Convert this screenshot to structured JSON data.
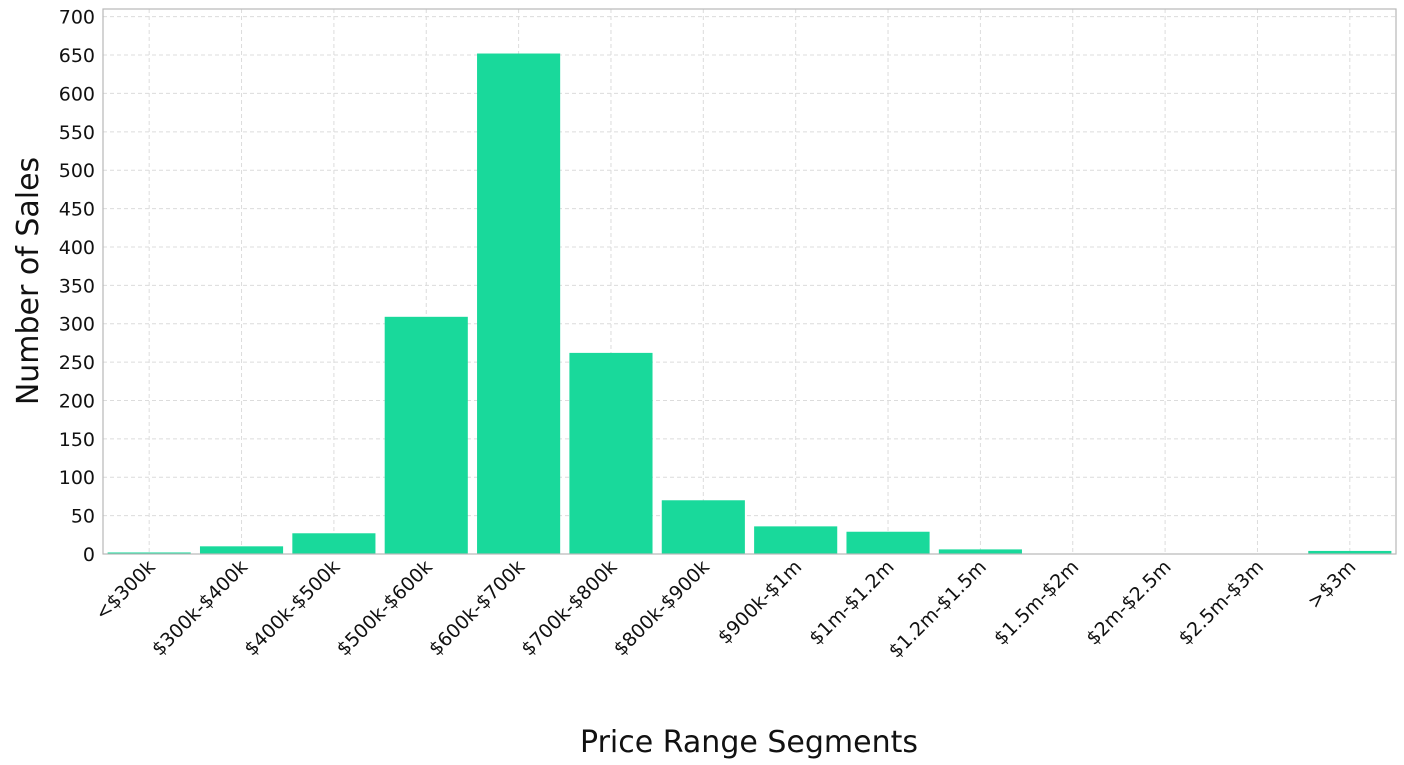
{
  "chart_data": {
    "type": "bar",
    "title": "",
    "xlabel": "Price Range Segments",
    "ylabel": "Number of Sales",
    "categories": [
      "<$300k",
      "$300k-$400k",
      "$400k-$500k",
      "$500k-$600k",
      "$600k-$700k",
      "$700k-$800k",
      "$800k-$900k",
      "$900k-$1m",
      "$1m-$1.2m",
      "$1.2m-$1.5m",
      "$1.5m-$2m",
      "$2m-$2.5m",
      "$2.5m-$3m",
      ">$3m"
    ],
    "values": [
      2,
      10,
      27,
      309,
      652,
      262,
      70,
      36,
      29,
      6,
      0,
      0,
      0,
      4
    ],
    "ylim": [
      0,
      710
    ],
    "yticks": [
      0,
      50,
      100,
      150,
      200,
      250,
      300,
      350,
      400,
      450,
      500,
      550,
      600,
      650,
      700
    ],
    "grid": true,
    "bar_color": "#19d99b"
  }
}
